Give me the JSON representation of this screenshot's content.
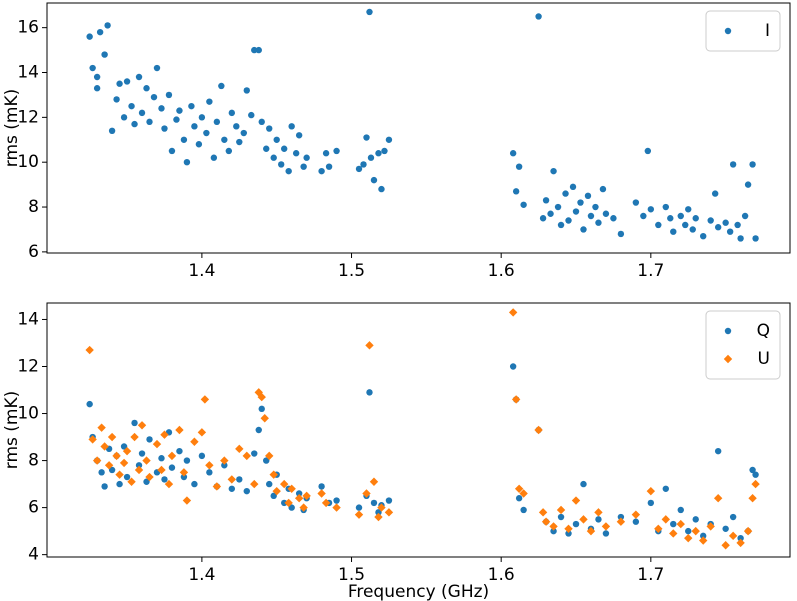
{
  "chart_data": [
    {
      "type": "scatter",
      "ylabel": "rms (mK)",
      "legend": "upper right",
      "xlim": [
        1.2965,
        1.793
      ],
      "xticks": [
        1.4,
        1.5,
        1.6,
        1.7
      ],
      "ylim": [
        5.95,
        17.1
      ],
      "yticks": [
        6,
        8,
        10,
        12,
        14,
        16
      ],
      "series": [
        {
          "name": "I",
          "color": "#1f77b4",
          "marker": "circle",
          "x": [
            1.325,
            1.327,
            1.33,
            1.332,
            1.335,
            1.337,
            1.33,
            1.34,
            1.343,
            1.345,
            1.348,
            1.35,
            1.353,
            1.355,
            1.358,
            1.36,
            1.363,
            1.365,
            1.368,
            1.37,
            1.373,
            1.375,
            1.378,
            1.38,
            1.383,
            1.385,
            1.388,
            1.39,
            1.393,
            1.395,
            1.398,
            1.4,
            1.403,
            1.405,
            1.408,
            1.41,
            1.413,
            1.415,
            1.418,
            1.42,
            1.423,
            1.425,
            1.428,
            1.43,
            1.433,
            1.435,
            1.438,
            1.44,
            1.443,
            1.445,
            1.448,
            1.45,
            1.453,
            1.455,
            1.458,
            1.46,
            1.463,
            1.465,
            1.468,
            1.47,
            1.48,
            1.483,
            1.485,
            1.49,
            1.505,
            1.508,
            1.51,
            1.512,
            1.513,
            1.515,
            1.518,
            1.52,
            1.522,
            1.525,
            1.608,
            1.61,
            1.612,
            1.615,
            1.625,
            1.628,
            1.63,
            1.633,
            1.635,
            1.638,
            1.64,
            1.643,
            1.645,
            1.648,
            1.65,
            1.653,
            1.655,
            1.658,
            1.66,
            1.663,
            1.665,
            1.668,
            1.67,
            1.675,
            1.68,
            1.69,
            1.695,
            1.698,
            1.7,
            1.705,
            1.71,
            1.713,
            1.715,
            1.72,
            1.723,
            1.725,
            1.728,
            1.73,
            1.735,
            1.74,
            1.743,
            1.745,
            1.75,
            1.753,
            1.755,
            1.758,
            1.76,
            1.763,
            1.765,
            1.768,
            1.77
          ],
          "values": [
            15.6,
            14.2,
            13.8,
            15.8,
            14.8,
            16.1,
            13.3,
            11.4,
            12.8,
            13.5,
            12.0,
            13.6,
            12.5,
            11.7,
            13.8,
            12.2,
            13.3,
            11.8,
            12.9,
            14.2,
            12.4,
            11.5,
            13.0,
            10.5,
            11.9,
            12.3,
            11.0,
            10.0,
            12.5,
            11.6,
            10.8,
            12.0,
            11.3,
            12.7,
            10.2,
            11.8,
            13.4,
            11.0,
            10.5,
            12.2,
            11.6,
            10.9,
            11.3,
            13.2,
            12.1,
            15.0,
            15.0,
            11.8,
            10.6,
            11.5,
            10.2,
            11.0,
            9.9,
            10.6,
            9.6,
            11.6,
            10.4,
            11.2,
            9.8,
            10.2,
            9.6,
            10.4,
            9.8,
            10.5,
            9.7,
            9.9,
            11.1,
            16.7,
            10.2,
            9.2,
            10.4,
            8.8,
            10.5,
            11.0,
            10.4,
            8.7,
            9.8,
            8.1,
            16.5,
            7.5,
            8.3,
            7.7,
            9.6,
            8.0,
            7.2,
            8.6,
            7.4,
            8.9,
            7.8,
            8.2,
            7.0,
            8.5,
            7.6,
            8.0,
            7.3,
            8.8,
            7.7,
            7.5,
            6.8,
            8.2,
            7.6,
            10.5,
            7.9,
            7.2,
            8.0,
            7.5,
            6.9,
            7.6,
            7.2,
            7.9,
            7.0,
            7.5,
            6.7,
            7.4,
            8.6,
            7.1,
            7.3,
            6.9,
            9.9,
            7.2,
            6.6,
            7.6,
            9.0,
            9.9,
            6.6
          ]
        }
      ]
    },
    {
      "type": "scatter",
      "xlabel": "Frequency (GHz)",
      "ylabel": "rms (mK)",
      "legend": "upper right",
      "xlim": [
        1.2965,
        1.793
      ],
      "xticks": [
        1.4,
        1.5,
        1.6,
        1.7
      ],
      "ylim": [
        3.9,
        14.7
      ],
      "yticks": [
        4,
        6,
        8,
        10,
        12,
        14
      ],
      "series": [
        {
          "name": "Q",
          "color": "#1f77b4",
          "marker": "circle",
          "x": [
            1.325,
            1.327,
            1.33,
            1.333,
            1.335,
            1.338,
            1.34,
            1.343,
            1.345,
            1.348,
            1.35,
            1.355,
            1.358,
            1.36,
            1.363,
            1.365,
            1.37,
            1.373,
            1.375,
            1.378,
            1.38,
            1.385,
            1.388,
            1.39,
            1.395,
            1.4,
            1.405,
            1.41,
            1.415,
            1.42,
            1.425,
            1.43,
            1.435,
            1.438,
            1.44,
            1.443,
            1.445,
            1.448,
            1.45,
            1.455,
            1.458,
            1.46,
            1.465,
            1.468,
            1.47,
            1.48,
            1.485,
            1.49,
            1.505,
            1.51,
            1.512,
            1.515,
            1.518,
            1.52,
            1.525,
            1.608,
            1.61,
            1.612,
            1.615,
            1.625,
            1.63,
            1.635,
            1.64,
            1.645,
            1.65,
            1.655,
            1.66,
            1.665,
            1.67,
            1.68,
            1.69,
            1.7,
            1.705,
            1.71,
            1.715,
            1.72,
            1.725,
            1.73,
            1.735,
            1.74,
            1.745,
            1.75,
            1.755,
            1.76,
            1.765,
            1.768,
            1.77
          ],
          "values": [
            10.4,
            9.0,
            8.0,
            7.5,
            6.9,
            8.5,
            7.6,
            8.2,
            7.0,
            8.6,
            7.3,
            9.6,
            7.8,
            8.3,
            7.1,
            8.9,
            7.5,
            8.1,
            7.2,
            9.2,
            7.7,
            8.4,
            7.3,
            8.0,
            7.0,
            8.2,
            7.5,
            6.9,
            7.8,
            6.8,
            7.2,
            6.7,
            8.3,
            9.3,
            10.2,
            8.0,
            7.0,
            6.5,
            7.4,
            6.2,
            6.8,
            6.0,
            6.6,
            5.9,
            6.4,
            6.9,
            6.2,
            6.3,
            6.0,
            6.5,
            10.9,
            6.2,
            5.8,
            6.1,
            6.3,
            12.0,
            10.6,
            6.4,
            5.9,
            9.3,
            5.4,
            5.0,
            5.6,
            4.9,
            5.3,
            7.0,
            5.1,
            5.5,
            4.9,
            5.6,
            5.4,
            6.2,
            5.0,
            6.8,
            5.3,
            5.9,
            5.0,
            5.5,
            4.8,
            5.3,
            8.4,
            5.1,
            5.6,
            4.7,
            5.0,
            7.6,
            7.4
          ]
        },
        {
          "name": "U",
          "color": "#ff7f0e",
          "marker": "diamond",
          "x": [
            1.325,
            1.327,
            1.33,
            1.333,
            1.335,
            1.338,
            1.34,
            1.343,
            1.345,
            1.348,
            1.35,
            1.353,
            1.355,
            1.358,
            1.36,
            1.363,
            1.365,
            1.37,
            1.373,
            1.375,
            1.378,
            1.38,
            1.385,
            1.388,
            1.39,
            1.395,
            1.4,
            1.402,
            1.405,
            1.41,
            1.415,
            1.42,
            1.425,
            1.43,
            1.435,
            1.438,
            1.44,
            1.442,
            1.445,
            1.448,
            1.45,
            1.455,
            1.458,
            1.46,
            1.465,
            1.468,
            1.47,
            1.48,
            1.483,
            1.49,
            1.505,
            1.51,
            1.512,
            1.515,
            1.518,
            1.52,
            1.525,
            1.608,
            1.61,
            1.612,
            1.615,
            1.625,
            1.628,
            1.63,
            1.635,
            1.64,
            1.645,
            1.65,
            1.655,
            1.66,
            1.665,
            1.67,
            1.68,
            1.69,
            1.7,
            1.705,
            1.71,
            1.715,
            1.72,
            1.725,
            1.73,
            1.735,
            1.74,
            1.745,
            1.75,
            1.755,
            1.76,
            1.765,
            1.768,
            1.77
          ],
          "values": [
            12.7,
            8.9,
            8.0,
            9.4,
            8.6,
            7.8,
            9.0,
            8.2,
            7.4,
            7.9,
            8.4,
            7.1,
            9.0,
            7.6,
            9.5,
            8.0,
            7.3,
            8.7,
            7.6,
            9.1,
            7.0,
            8.2,
            9.3,
            7.5,
            6.3,
            8.8,
            9.2,
            10.6,
            7.8,
            6.9,
            8.0,
            7.2,
            8.5,
            8.2,
            7.0,
            10.9,
            10.7,
            9.8,
            8.2,
            7.4,
            6.7,
            7.0,
            6.2,
            6.8,
            6.4,
            6.0,
            6.5,
            6.6,
            6.2,
            6.0,
            5.7,
            6.6,
            12.9,
            7.1,
            5.6,
            6.0,
            5.8,
            14.3,
            10.6,
            6.8,
            6.6,
            9.3,
            5.8,
            5.4,
            5.2,
            5.9,
            5.1,
            6.3,
            5.5,
            5.0,
            5.8,
            5.2,
            5.4,
            5.7,
            6.7,
            5.1,
            5.5,
            4.9,
            5.3,
            4.7,
            5.0,
            4.6,
            5.2,
            6.4,
            4.4,
            4.8,
            4.5,
            5.0,
            6.4,
            7.0
          ]
        }
      ]
    }
  ]
}
